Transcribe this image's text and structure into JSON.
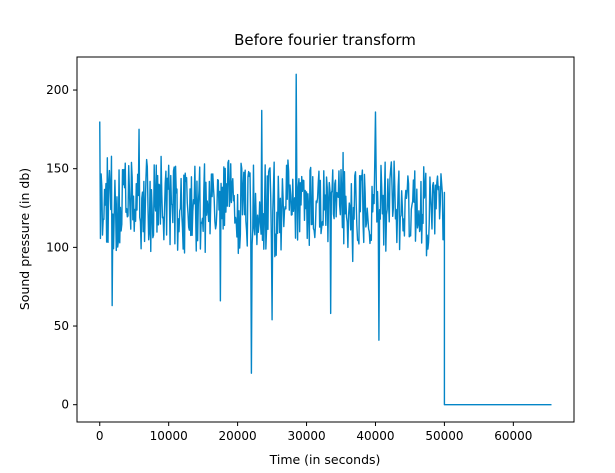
{
  "chart_data": {
    "type": "line",
    "title": "Before fourier transform",
    "xlabel": "Time (in seconds)",
    "ylabel": "Sound pressure (in db)",
    "xlim": [
      -3300,
      68800
    ],
    "ylim": [
      -11,
      221
    ],
    "xticks": [
      0,
      10000,
      20000,
      30000,
      40000,
      50000,
      60000
    ],
    "yticks": [
      0,
      50,
      100,
      150,
      200
    ],
    "grid": false,
    "legend": "none",
    "colors": {
      "line": "#0485c7"
    },
    "signal": {
      "active_range": [
        0,
        50000
      ],
      "mean": 127,
      "typical_range": [
        100,
        160
      ],
      "sample_step": 100,
      "peaks": [
        {
          "x": 0,
          "y": 180
        },
        {
          "x": 5700,
          "y": 175
        },
        {
          "x": 28500,
          "y": 210
        },
        {
          "x": 40000,
          "y": 186
        },
        {
          "x": 23500,
          "y": 187
        }
      ],
      "dips": [
        {
          "x": 22000,
          "y": 20
        },
        {
          "x": 40500,
          "y": 41
        },
        {
          "x": 25000,
          "y": 54
        },
        {
          "x": 1800,
          "y": 63
        },
        {
          "x": 17500,
          "y": 66
        },
        {
          "x": 33500,
          "y": 58
        }
      ]
    },
    "tail": {
      "x": [
        50000,
        65536
      ],
      "y": 0
    }
  }
}
